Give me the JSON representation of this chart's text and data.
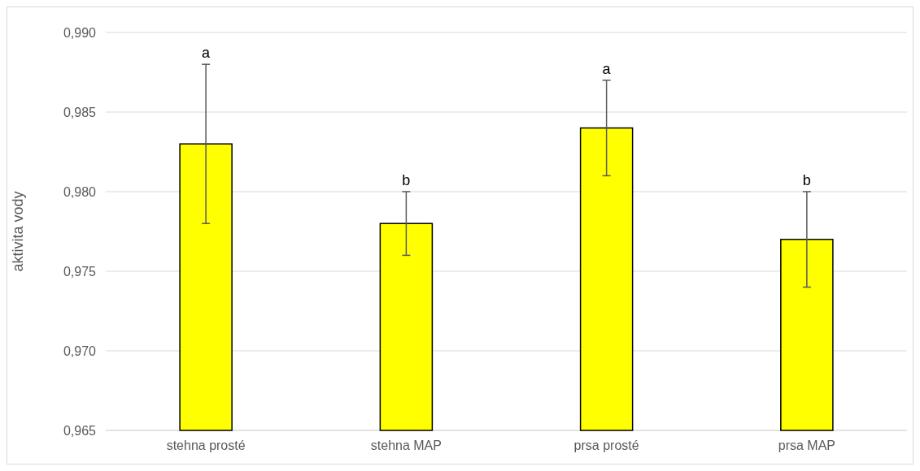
{
  "chart_data": {
    "type": "bar",
    "ylabel": "aktivita vody",
    "categories": [
      "stehna prosté",
      "stehna MAP",
      "prsa prosté",
      "prsa MAP"
    ],
    "values": [
      0.983,
      0.978,
      0.984,
      0.977
    ],
    "errors": [
      0.005,
      0.002,
      0.003,
      0.003
    ],
    "color": "#ffff00",
    "ylim": [
      0.965,
      0.99
    ],
    "yticks": [
      {
        "value": 0.965,
        "label": "0,965"
      },
      {
        "value": 0.97,
        "label": "0,970"
      },
      {
        "value": 0.975,
        "label": "0,975"
      },
      {
        "value": 0.98,
        "label": "0,980"
      },
      {
        "value": 0.985,
        "label": "0,985"
      },
      {
        "value": 0.99,
        "label": "0,990"
      }
    ],
    "grid": "y",
    "annotations": [
      {
        "text": "a",
        "x": "stehna prosté",
        "y": 0.988
      },
      {
        "text": "b",
        "x": "stehna MAP",
        "y": 0.98
      },
      {
        "text": "a",
        "x": "prsa prosté",
        "y": 0.987
      },
      {
        "text": "b",
        "x": "prsa MAP",
        "y": 0.98
      }
    ]
  }
}
